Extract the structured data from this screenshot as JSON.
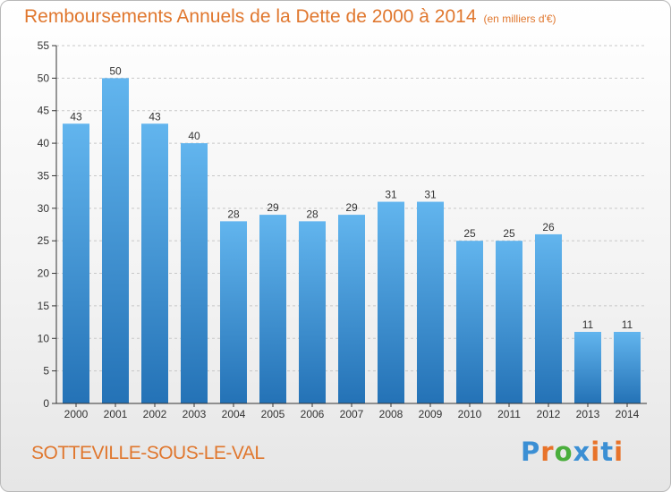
{
  "title": "Remboursements Annuels de la Dette de 2000 à 2014",
  "unit_label": "(en milliers d'€)",
  "commune": "SOTTEVILLE-SOUS-LE-VAL",
  "logo": {
    "letters": [
      "P",
      "r",
      "o",
      "x",
      "i",
      "t",
      "i"
    ],
    "colors": [
      "#3b8fd4",
      "#e8732a",
      "#4aae3c",
      "#3b8fd4",
      "#e8732a",
      "#3b8fd4",
      "#e8732a"
    ]
  },
  "colors": {
    "bar_top": "#62b5ee",
    "bar_bottom": "#2472b6",
    "title": "#e0772e",
    "axis": "#333333",
    "grid": "#c8c8c8"
  },
  "chart_data": {
    "type": "bar",
    "categories": [
      "2000",
      "2001",
      "2002",
      "2003",
      "2004",
      "2005",
      "2006",
      "2007",
      "2008",
      "2009",
      "2010",
      "2011",
      "2012",
      "2013",
      "2014"
    ],
    "values": [
      43,
      50,
      43,
      40,
      28,
      29,
      28,
      29,
      31,
      31,
      25,
      25,
      26,
      11,
      11
    ],
    "ylim": [
      0,
      55
    ],
    "yticks": [
      0,
      5,
      10,
      15,
      20,
      25,
      30,
      35,
      40,
      45,
      50,
      55
    ],
    "grid": true,
    "data_labels": true,
    "xlabel": "",
    "ylabel": ""
  }
}
